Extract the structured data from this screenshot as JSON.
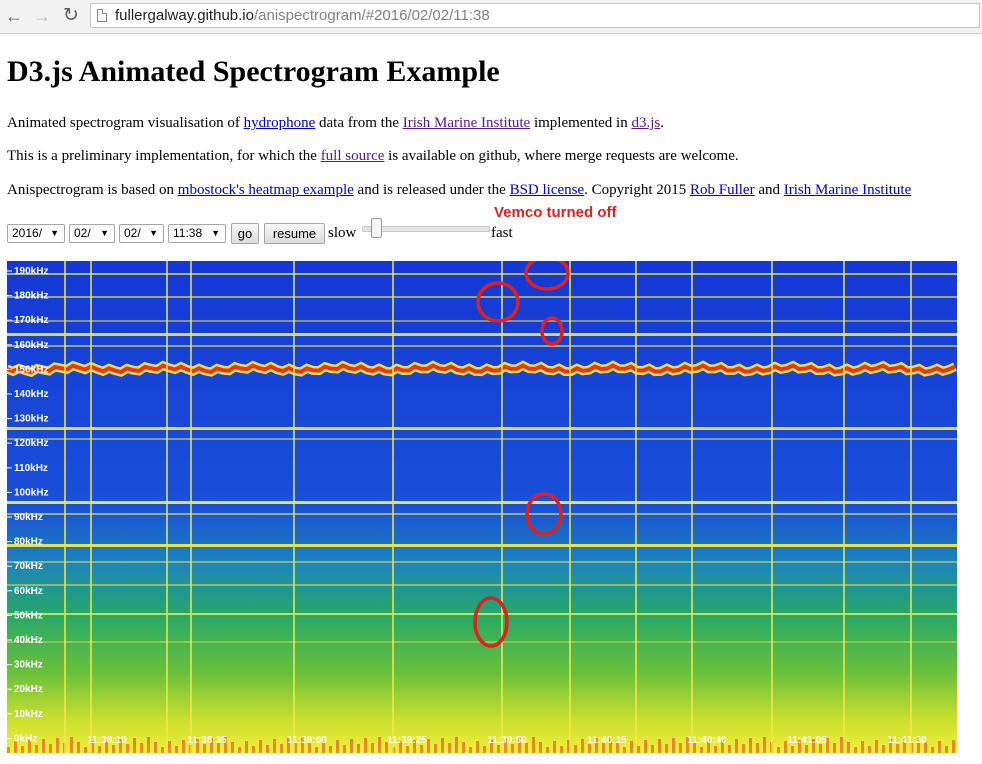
{
  "browser": {
    "url_host": "fullergalway.github.io",
    "url_path": "/anispectrogram/#2016/02/02/11:38"
  },
  "page": {
    "title": "D3.js Animated Spectrogram Example",
    "para1": {
      "t1": "Animated spectrogram visualisation of ",
      "link_hydrophone": "hydrophone",
      "t2": " data from the ",
      "link_irish_marine": "Irish Marine Institute",
      "t3": " implemented in ",
      "link_d3": "d3.js",
      "t4": "."
    },
    "para2": {
      "t1": "This is a preliminary implementation, for which the ",
      "link_full_source": "full source",
      "t2": " is available on github, where merge requests are welcome."
    },
    "para3": {
      "t1": "Anispectrogram is based on ",
      "link_mbostock": "mbostock's heatmap example",
      "t2": " and is released under the ",
      "link_bsd": "BSD license",
      "t3": ". Copyright 2015 ",
      "link_rob": "Rob Fuller",
      "t4": " and ",
      "link_irish_marine2": "Irish Marine Institute"
    }
  },
  "controls": {
    "year": "2016/",
    "month": "02/",
    "day": "02/",
    "time": "11:38",
    "go_label": "go",
    "resume_label": "resume",
    "slow_label": "slow",
    "fast_label": "fast",
    "speed_value": 0.08
  },
  "annotation": {
    "note": "Vemco turned off",
    "color": "#e02020"
  },
  "spectrogram": {
    "y_ticks": [
      "190kHz",
      "180kHz",
      "170kHz",
      "160kHz",
      "150kHz",
      "140kHz",
      "130kHz",
      "120kHz",
      "110kHz",
      "100kHz",
      "90kHz",
      "80kHz",
      "70kHz",
      "60kHz",
      "50kHz",
      "40kHz",
      "30kHz",
      "20kHz",
      "10kHz",
      "0kHz"
    ],
    "x_ticks": [
      "11:38:10",
      "11:38:35",
      "11:39:00",
      "11:39:25",
      "11:39:50",
      "11:40:15",
      "11:40:40",
      "11:41:05",
      "11:41:30"
    ],
    "colors": {
      "low": "#1a3fd8",
      "mid": "#27a866",
      "band": "#f2e94a",
      "hot": "#e8361c"
    }
  }
}
